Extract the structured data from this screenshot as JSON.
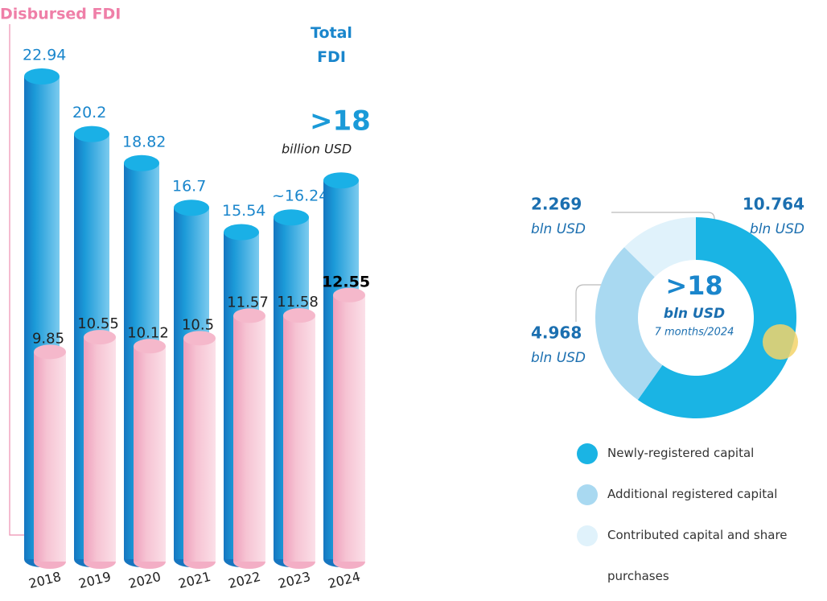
{
  "chart_data": [
    {
      "type": "bar",
      "categories": [
        "2018",
        "2019",
        "2020",
        "2021",
        "2022",
        "2023",
        "2024"
      ],
      "series": [
        {
          "name": "Total FDI",
          "color": "#1ab0e6",
          "values": [
            22.94,
            20.2,
            18.82,
            16.7,
            15.54,
            16.24,
            18
          ],
          "value_labels": [
            "22.94",
            "20.2",
            "18.82",
            "16.7",
            "15.54",
            "~16.24",
            ">18"
          ]
        },
        {
          "name": "Disbursed FDI",
          "color": "#f5b8cb",
          "values": [
            9.85,
            10.55,
            10.12,
            10.5,
            11.57,
            11.58,
            12.55
          ]
        }
      ],
      "annotation": "billion USD"
    },
    {
      "type": "donut",
      "categories": [
        "Newly-registered capital",
        "Additional registered capital",
        "Contributed capital and share purchases"
      ],
      "values": [
        10.764,
        4.968,
        2.269
      ],
      "colors": [
        "#1ab4e4",
        "#a9d9f1",
        "#e0f2fb"
      ],
      "unit": "bln USD",
      "center_label": ">18",
      "center_unit": "bln USD",
      "center_note": "7 months/2024"
    }
  ]
}
